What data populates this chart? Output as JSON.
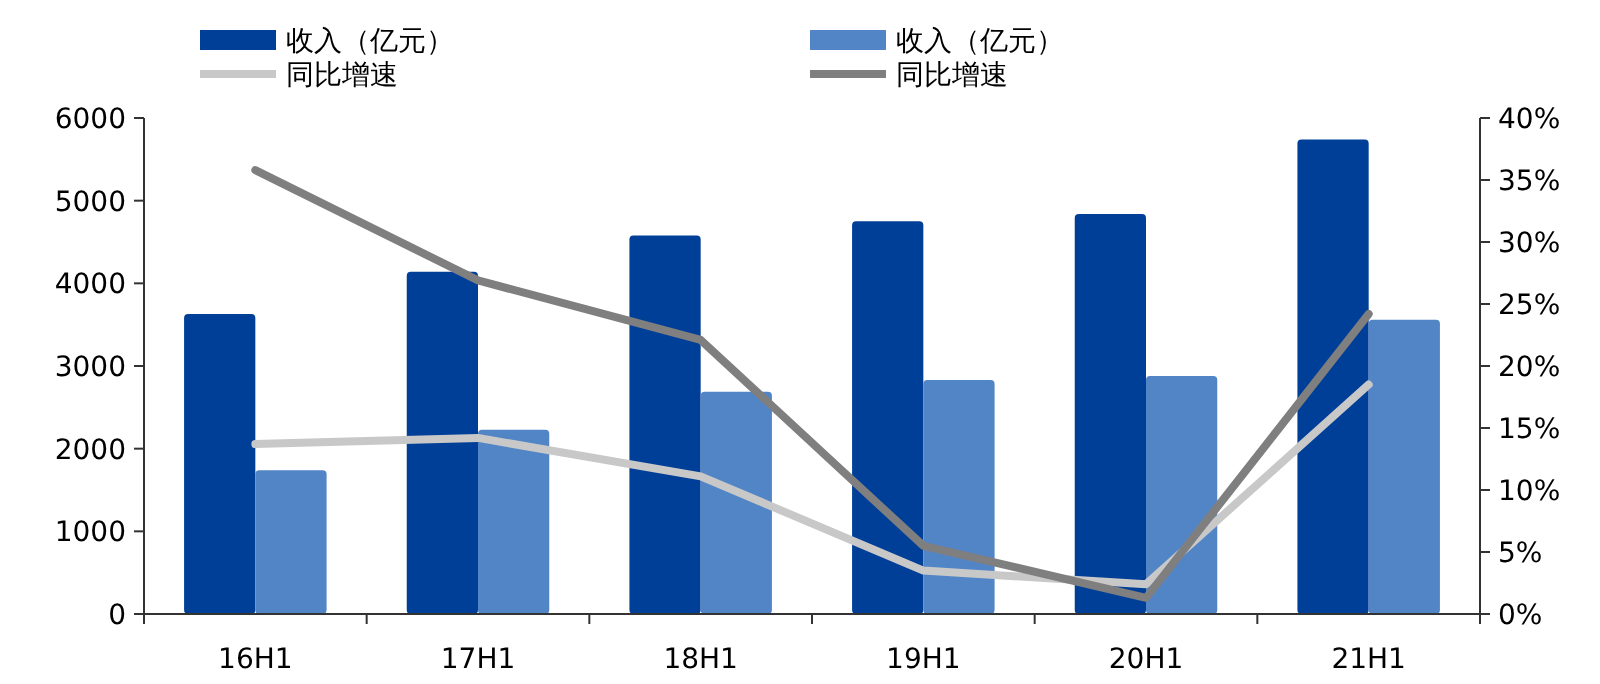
{
  "chart_data": {
    "type": "bar",
    "categories": [
      "16H1",
      "17H1",
      "18H1",
      "19H1",
      "20H1",
      "21H1"
    ],
    "series": [
      {
        "name": "收入（亿元）",
        "color": "#003f98",
        "values": [
          3630,
          4140,
          4580,
          4750,
          4840,
          5740
        ]
      },
      {
        "name": "收入（亿元）",
        "color": "#5185c6",
        "values": [
          1740,
          2230,
          2690,
          2830,
          2880,
          3560
        ]
      },
      {
        "name": "同比增速",
        "type": "line",
        "axis": "y2",
        "color": "#c8c8c8",
        "values": [
          13.7,
          14.2,
          11.1,
          3.5,
          2.4,
          18.5
        ]
      },
      {
        "name": "同比增速",
        "type": "line",
        "axis": "y2",
        "color": "#7f7f7f",
        "values": [
          35.8,
          26.9,
          22.1,
          5.5,
          1.3,
          24.2
        ]
      }
    ],
    "ylim": [
      0,
      6000
    ],
    "yticks": [
      0,
      1000,
      2000,
      3000,
      4000,
      5000,
      6000
    ],
    "y2lim": [
      0,
      40
    ],
    "y2ticks": [
      {
        "value": 0,
        "label": "0%"
      },
      {
        "value": 5,
        "label": "5%"
      },
      {
        "value": 10,
        "label": "10%"
      },
      {
        "value": 15,
        "label": "15%"
      },
      {
        "value": 20,
        "label": "20%"
      },
      {
        "value": 25,
        "label": "25%"
      },
      {
        "value": 30,
        "label": "30%"
      },
      {
        "value": 35,
        "label": "35%"
      },
      {
        "value": 40,
        "label": "40%"
      }
    ],
    "grid": false,
    "legend": "top",
    "line_style": "solid",
    "marker": "none"
  }
}
